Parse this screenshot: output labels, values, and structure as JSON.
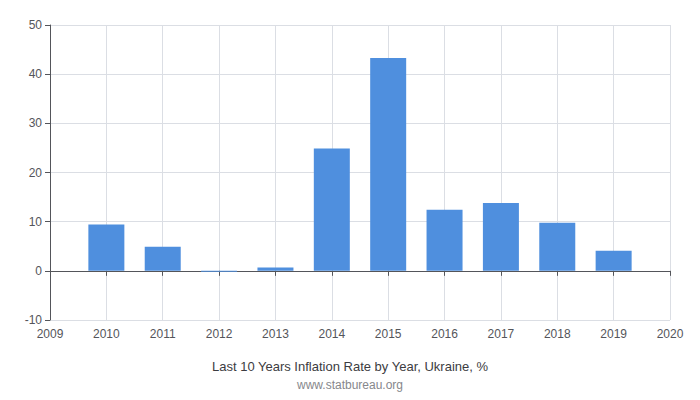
{
  "chart_data": {
    "type": "bar",
    "title": "Last 10 Years Inflation Rate by Year, Ukraine, %",
    "subtitle": "www.statbureau.org",
    "x": [
      2010,
      2011,
      2012,
      2013,
      2014,
      2015,
      2016,
      2017,
      2018,
      2019
    ],
    "values": [
      9.4,
      4.9,
      -0.2,
      0.7,
      24.9,
      43.3,
      12.4,
      13.8,
      9.8,
      4.1
    ],
    "color": "#4f8fde",
    "xlim": [
      2009,
      2020
    ],
    "xticks": [
      2009,
      2010,
      2011,
      2012,
      2013,
      2014,
      2015,
      2016,
      2017,
      2018,
      2019,
      2020
    ],
    "ylim": [
      -10,
      50
    ],
    "yticks": [
      -10,
      0,
      10,
      20,
      30,
      40,
      50
    ],
    "grid": true
  }
}
